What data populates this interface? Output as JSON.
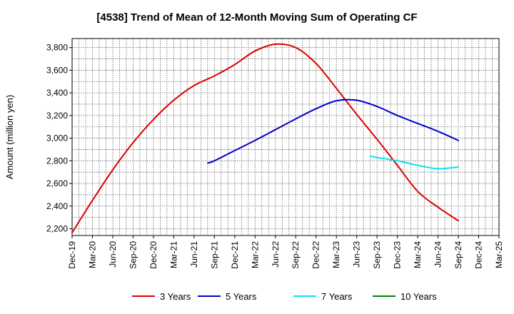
{
  "chart_data": {
    "type": "line",
    "title": "[4538]  Trend of Mean of 12-Month Moving Sum of Operating CF",
    "xlabel": "",
    "ylabel": "Amount (million yen)",
    "ylim": [
      2140,
      3880
    ],
    "yticks": [
      2200,
      2400,
      2600,
      2800,
      3000,
      3200,
      3400,
      3600,
      3800
    ],
    "ytick_labels": [
      "2,200",
      "2,400",
      "2,600",
      "2,800",
      "3,000",
      "3,200",
      "3,400",
      "3,600",
      "3,800"
    ],
    "x_categories": [
      "Dec-19",
      "Mar-20",
      "Jun-20",
      "Sep-20",
      "Dec-20",
      "Mar-21",
      "Jun-21",
      "Sep-21",
      "Dec-21",
      "Mar-22",
      "Jun-22",
      "Sep-22",
      "Dec-22",
      "Mar-23",
      "Jun-23",
      "Sep-23",
      "Dec-23",
      "Mar-24",
      "Jun-24",
      "Sep-24",
      "Dec-24",
      "Mar-25"
    ],
    "grid": true,
    "legend_position": "bottom",
    "series": [
      {
        "name": "3 Years",
        "color": "#dd0000",
        "x": [
          0,
          1,
          2,
          3,
          4,
          5,
          6,
          7,
          8,
          9,
          10,
          11,
          12,
          13,
          14,
          15,
          16,
          17,
          18,
          19
        ],
        "values": [
          2165,
          2450,
          2720,
          2960,
          3165,
          3335,
          3465,
          3550,
          3650,
          3770,
          3830,
          3800,
          3660,
          3440,
          3210,
          2990,
          2760,
          2530,
          2390,
          2270
        ]
      },
      {
        "name": "5 Years",
        "color": "#0000cc",
        "x": [
          6.67,
          7,
          8,
          9,
          10,
          11,
          12,
          13,
          14,
          15,
          16,
          17,
          18,
          19
        ],
        "values": [
          2780,
          2800,
          2890,
          2980,
          3075,
          3170,
          3260,
          3330,
          3335,
          3280,
          3200,
          3130,
          3060,
          2980
        ]
      },
      {
        "name": "7 Years",
        "color": "#00e5ee",
        "x": [
          14.67,
          15,
          16,
          17,
          18,
          19
        ],
        "values": [
          2840,
          2830,
          2800,
          2760,
          2730,
          2745
        ]
      },
      {
        "name": "10 Years",
        "color": "#008000",
        "x": [],
        "values": []
      }
    ]
  }
}
